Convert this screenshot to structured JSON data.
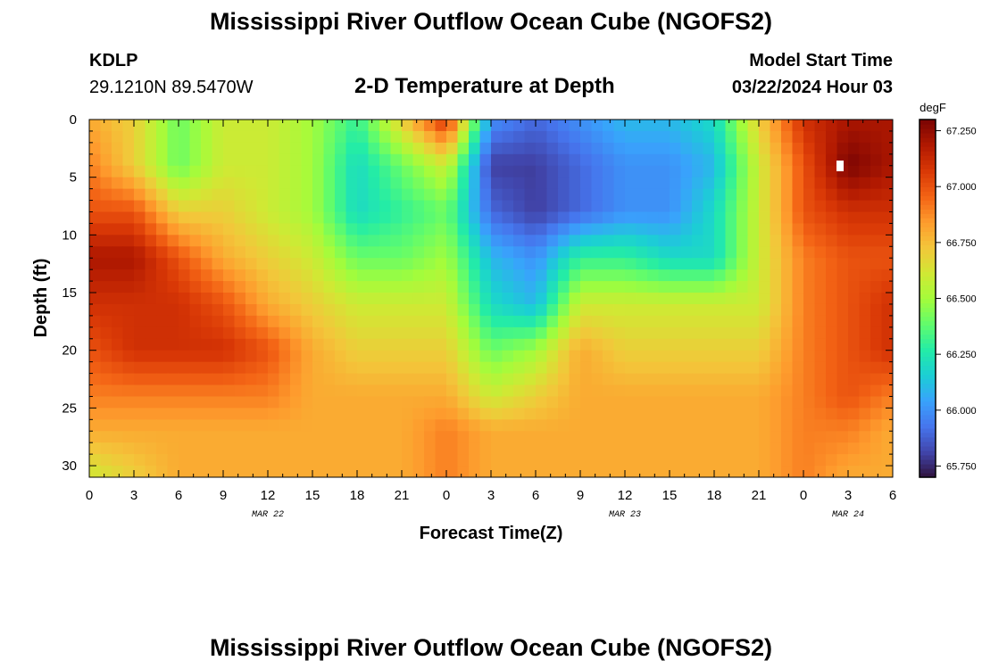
{
  "header": {
    "title": "Mississippi River Outflow Ocean Cube (NGOFS2)",
    "station": "KDLP",
    "coords": "29.1210N  89.5470W",
    "subtitle": "2-D Temperature at Depth",
    "model_start_label": "Model Start Time",
    "model_start_value": "03/22/2024 Hour 03"
  },
  "footer_title": "Mississippi River Outflow Ocean Cube (NGOFS2)",
  "chart_data": {
    "type": "heatmap",
    "title": "2-D Temperature at Depth",
    "xlabel": "Forecast Time(Z)",
    "ylabel": "Depth (ft)",
    "x_tick_labels": [
      "0",
      "3",
      "6",
      "9",
      "12",
      "15",
      "18",
      "21",
      "0",
      "3",
      "6",
      "9",
      "12",
      "15",
      "18",
      "21",
      "0",
      "3",
      "6"
    ],
    "x_hours": [
      0,
      3,
      6,
      9,
      12,
      15,
      18,
      21,
      24,
      27,
      30,
      33,
      36,
      39,
      42,
      45,
      48,
      51,
      54
    ],
    "xlim": [
      0,
      54
    ],
    "date_labels": [
      {
        "text": "MAR 22",
        "hour": 12
      },
      {
        "text": "MAR 23",
        "hour": 36
      },
      {
        "text": "MAR 24",
        "hour": 51
      }
    ],
    "y_ticks": [
      0,
      5,
      10,
      15,
      20,
      25,
      30
    ],
    "ylim": [
      0,
      31
    ],
    "y_inverted": true,
    "colorbar": {
      "unit": "degF",
      "min": 65.7,
      "max": 67.3,
      "tick_values": [
        65.75,
        66.0,
        66.25,
        66.5,
        66.75,
        67.0,
        67.25
      ],
      "tick_labels": [
        "65.750",
        "66.000",
        "66.250",
        "66.500",
        "66.750",
        "67.000",
        "67.250"
      ]
    },
    "grid": false,
    "depths_ft": [
      0,
      4,
      8,
      12,
      16,
      20,
      24,
      27,
      31
    ],
    "times_h": [
      0,
      3,
      6,
      9,
      12,
      15,
      18,
      21,
      24,
      27,
      30,
      33,
      36,
      39,
      42,
      45,
      48,
      51,
      54
    ],
    "temperature_degF": [
      [
        66.8,
        66.7,
        66.4,
        66.6,
        66.6,
        66.5,
        66.3,
        66.7,
        67.1,
        66.0,
        65.9,
        66.0,
        66.1,
        66.1,
        66.2,
        66.7,
        67.1,
        67.2,
        67.2
      ],
      [
        66.9,
        66.7,
        66.4,
        66.6,
        66.6,
        66.5,
        66.2,
        66.4,
        66.6,
        65.8,
        65.8,
        65.9,
        66.0,
        66.0,
        66.1,
        66.6,
        67.0,
        67.3,
        67.2
      ],
      [
        67.0,
        67.0,
        66.7,
        66.7,
        66.6,
        66.5,
        66.2,
        66.3,
        66.4,
        65.9,
        65.8,
        65.9,
        66.0,
        66.0,
        66.2,
        66.6,
        67.0,
        67.1,
        67.1
      ],
      [
        67.2,
        67.2,
        67.0,
        66.8,
        66.7,
        66.6,
        66.4,
        66.4,
        66.5,
        66.1,
        66.0,
        66.3,
        66.3,
        66.2,
        66.2,
        66.6,
        66.9,
        67.0,
        67.0
      ],
      [
        67.1,
        67.1,
        67.1,
        67.0,
        66.8,
        66.7,
        66.6,
        66.6,
        66.6,
        66.2,
        66.1,
        66.6,
        66.6,
        66.6,
        66.6,
        66.6,
        66.9,
        67.0,
        67.1
      ],
      [
        67.0,
        67.1,
        67.1,
        67.1,
        67.0,
        66.8,
        66.7,
        66.7,
        66.7,
        66.4,
        66.5,
        66.8,
        66.7,
        66.7,
        66.7,
        66.7,
        66.9,
        67.0,
        67.1
      ],
      [
        66.9,
        66.9,
        66.9,
        66.9,
        66.9,
        66.8,
        66.8,
        66.8,
        66.8,
        66.6,
        66.7,
        66.8,
        66.8,
        66.8,
        66.8,
        66.8,
        66.9,
        67.0,
        66.9
      ],
      [
        66.8,
        66.8,
        66.8,
        66.8,
        66.8,
        66.8,
        66.8,
        66.8,
        66.9,
        66.8,
        66.8,
        66.8,
        66.8,
        66.8,
        66.8,
        66.8,
        66.9,
        66.9,
        66.8
      ],
      [
        66.6,
        66.7,
        66.8,
        66.8,
        66.8,
        66.8,
        66.8,
        66.8,
        66.9,
        66.8,
        66.8,
        66.8,
        66.8,
        66.8,
        66.8,
        66.8,
        66.9,
        66.8,
        66.8
      ]
    ],
    "colormap": [
      "#30123b",
      "#4145ab",
      "#4675ed",
      "#39a2fc",
      "#1bcfd4",
      "#24eca6",
      "#61fc6c",
      "#a4fc3b",
      "#d1e834",
      "#f3c63a",
      "#fe9b2d",
      "#f36315",
      "#d93806",
      "#b11901",
      "#7a0403"
    ]
  }
}
